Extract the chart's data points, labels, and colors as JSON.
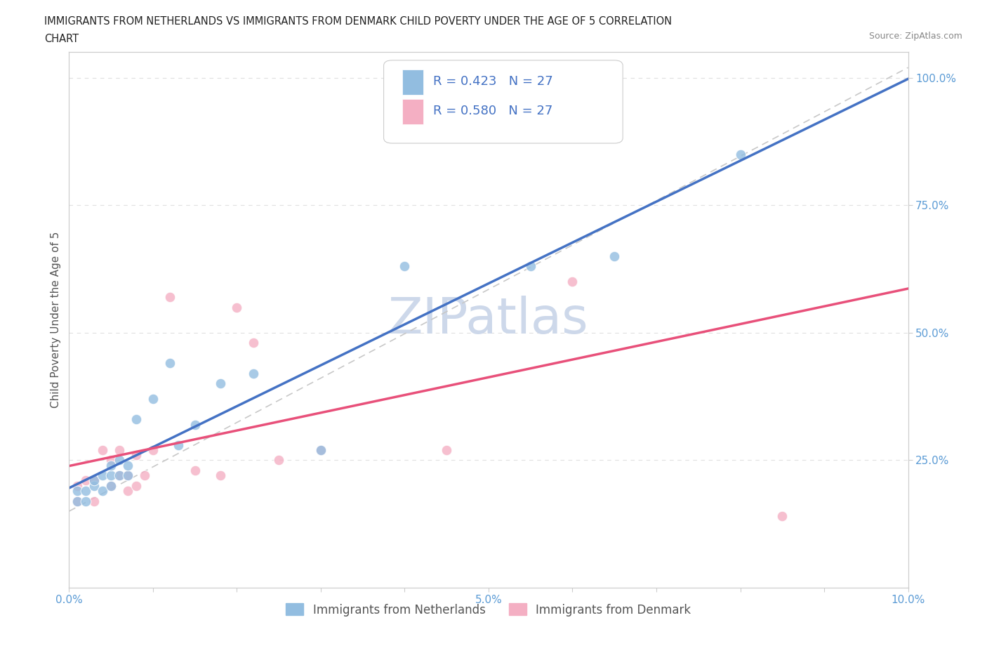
{
  "title_line1": "IMMIGRANTS FROM NETHERLANDS VS IMMIGRANTS FROM DENMARK CHILD POVERTY UNDER THE AGE OF 5 CORRELATION",
  "title_line2": "CHART",
  "source": "Source: ZipAtlas.com",
  "ylabel": "Child Poverty Under the Age of 5",
  "xlim": [
    0.0,
    0.1
  ],
  "ylim": [
    0.0,
    1.05
  ],
  "nl_color": "#92bde0",
  "dk_color": "#f4afc3",
  "nl_line_color": "#4472c4",
  "dk_line_color": "#e8507a",
  "ref_line_color": "#c8c8c8",
  "R_nl": 0.423,
  "N_nl": 27,
  "R_dk": 0.58,
  "N_dk": 27,
  "nl_x": [
    0.001,
    0.001,
    0.002,
    0.002,
    0.003,
    0.003,
    0.004,
    0.004,
    0.005,
    0.005,
    0.005,
    0.006,
    0.006,
    0.007,
    0.007,
    0.008,
    0.01,
    0.012,
    0.013,
    0.015,
    0.018,
    0.022,
    0.03,
    0.04,
    0.055,
    0.065,
    0.08
  ],
  "nl_y": [
    0.17,
    0.19,
    0.17,
    0.19,
    0.2,
    0.21,
    0.19,
    0.22,
    0.2,
    0.22,
    0.24,
    0.22,
    0.25,
    0.22,
    0.24,
    0.33,
    0.37,
    0.44,
    0.28,
    0.32,
    0.4,
    0.42,
    0.27,
    0.63,
    0.63,
    0.65,
    0.85
  ],
  "dk_x": [
    0.001,
    0.001,
    0.002,
    0.003,
    0.003,
    0.004,
    0.005,
    0.005,
    0.006,
    0.006,
    0.007,
    0.007,
    0.008,
    0.008,
    0.009,
    0.01,
    0.012,
    0.015,
    0.018,
    0.02,
    0.022,
    0.025,
    0.03,
    0.045,
    0.05,
    0.06,
    0.085
  ],
  "dk_y": [
    0.17,
    0.2,
    0.21,
    0.17,
    0.21,
    0.27,
    0.2,
    0.25,
    0.22,
    0.27,
    0.19,
    0.22,
    0.2,
    0.26,
    0.22,
    0.27,
    0.57,
    0.23,
    0.22,
    0.55,
    0.48,
    0.25,
    0.27,
    0.27,
    0.96,
    0.6,
    0.14
  ],
  "watermark": "ZIPatlas",
  "watermark_color": "#cdd8ea",
  "marker_size": 110,
  "background_color": "#ffffff",
  "grid_color": "#e0e0e0",
  "tick_color": "#5B9BD5",
  "label_color": "#555555",
  "title_color": "#222222",
  "source_color": "#888888",
  "legend_label_nl": "Immigrants from Netherlands",
  "legend_label_dk": "Immigrants from Denmark"
}
